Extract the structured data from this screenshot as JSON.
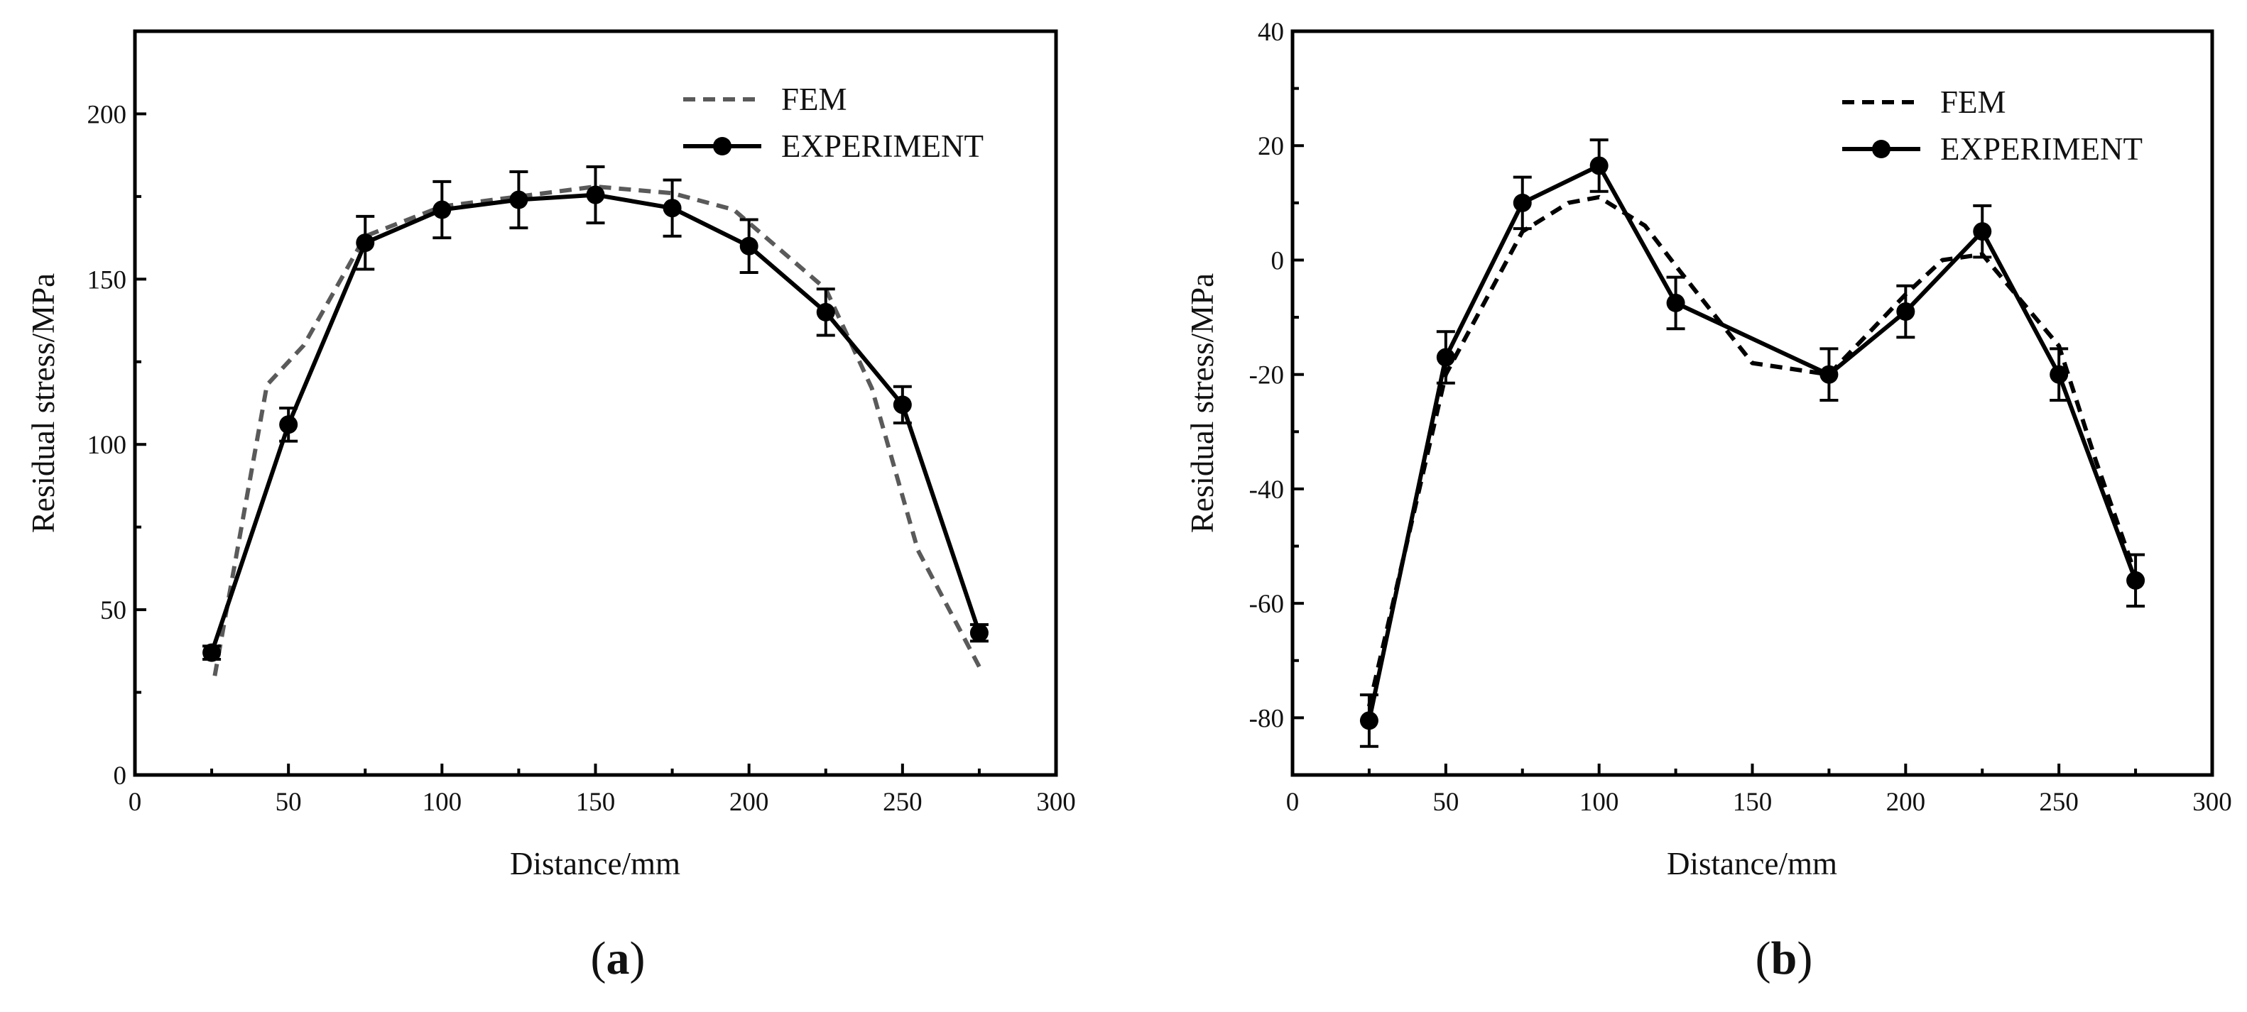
{
  "chart_data": [
    {
      "type": "line",
      "panel_label": "a",
      "xlabel": "Distance/mm",
      "ylabel": "Residual stress/MPa",
      "xlim": [
        0,
        300
      ],
      "ylim": [
        0,
        225
      ],
      "xticks": [
        0,
        50,
        100,
        150,
        200,
        250,
        300
      ],
      "yticks": [
        0,
        50,
        100,
        150,
        200
      ],
      "tick_labels_x": [
        "0",
        "50",
        "100",
        "150",
        "200",
        "250",
        "300"
      ],
      "tick_labels_y": [
        "0",
        "50",
        "100",
        "150",
        "200"
      ],
      "legend_position": "top-right",
      "series": [
        {
          "name": "FEM",
          "style": "dashed",
          "color": "#5a5a5a",
          "x": [
            26,
            43,
            55,
            75,
            100,
            125,
            150,
            175,
            195,
            225,
            240,
            255,
            276
          ],
          "y": [
            30,
            118,
            130,
            163,
            172,
            175,
            178,
            176,
            171,
            147,
            117,
            68,
            31
          ]
        },
        {
          "name": "EXPERIMENT",
          "style": "solid-marker",
          "color": "#000000",
          "x": [
            25,
            50,
            75,
            100,
            125,
            150,
            175,
            200,
            225,
            250,
            275
          ],
          "y": [
            37,
            106,
            161,
            171,
            174,
            175.5,
            171.5,
            160,
            140,
            112,
            43
          ],
          "err": [
            2,
            5,
            8,
            8.5,
            8.5,
            8.5,
            8.5,
            8,
            7,
            5.5,
            2.5
          ]
        }
      ]
    },
    {
      "type": "line",
      "panel_label": "b",
      "xlabel": "Distance/mm",
      "ylabel": "Residual stress/MPa",
      "xlim": [
        0,
        300
      ],
      "ylim": [
        -90,
        40
      ],
      "xticks": [
        0,
        50,
        100,
        150,
        200,
        250,
        300
      ],
      "yticks": [
        -80,
        -60,
        -40,
        -20,
        0,
        20,
        40
      ],
      "tick_labels_x": [
        "0",
        "50",
        "100",
        "150",
        "200",
        "250",
        "300"
      ],
      "tick_labels_y": [
        "-80",
        "-60",
        "-40",
        "-20",
        "0",
        "20",
        "40"
      ],
      "legend_position": "top-right",
      "series": [
        {
          "name": "FEM",
          "style": "dashed",
          "color": "#000000",
          "x": [
            25,
            50,
            75,
            90,
            100,
            115,
            125,
            150,
            175,
            200,
            212,
            225,
            250,
            262,
            275
          ],
          "y": [
            -78,
            -20,
            5,
            10,
            11,
            6,
            -1,
            -18,
            -20,
            -6,
            0,
            1,
            -15,
            -35,
            -55
          ]
        },
        {
          "name": "EXPERIMENT",
          "style": "solid-marker",
          "color": "#000000",
          "x": [
            25,
            50,
            75,
            100,
            125,
            175,
            200,
            225,
            250,
            275
          ],
          "y": [
            -80.5,
            -17,
            10,
            16.5,
            -7.5,
            -20,
            -9,
            5,
            -20,
            -56
          ],
          "err": [
            4.5,
            4.5,
            4.5,
            4.5,
            4.5,
            4.5,
            4.5,
            4.5,
            4.5,
            4.5
          ]
        }
      ]
    }
  ]
}
